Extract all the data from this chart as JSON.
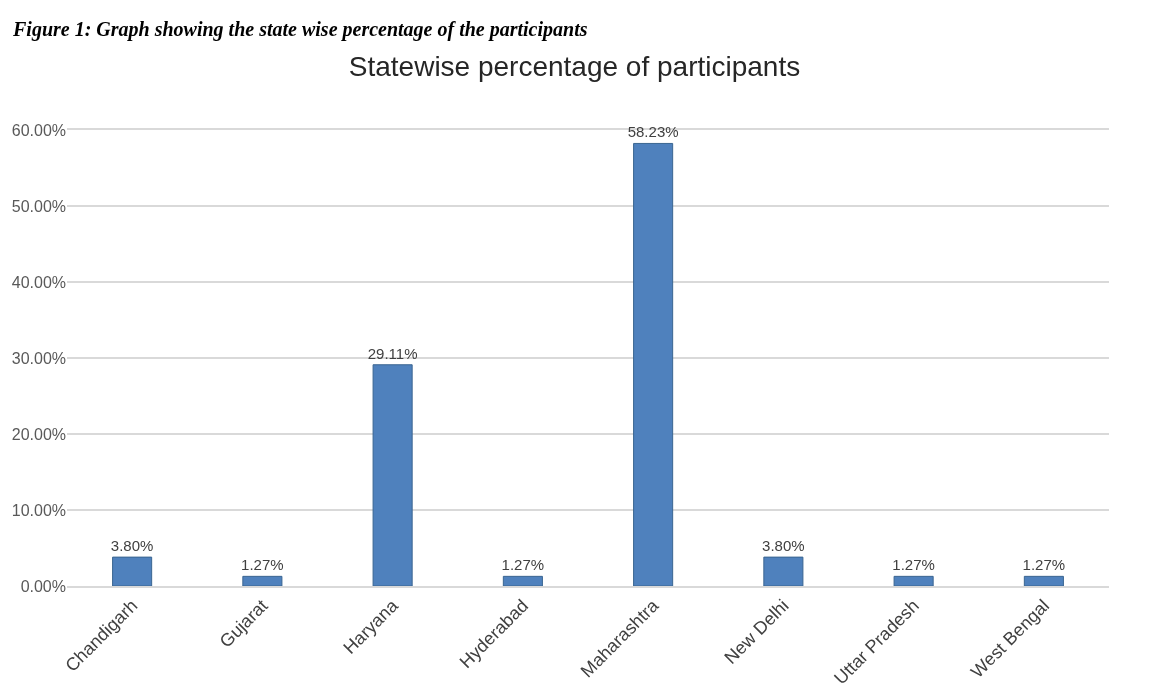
{
  "chart_data": {
    "type": "bar",
    "title": "Statewise percentage of participants",
    "annotations": [
      "Figure 1: Graph showing the state wise percentage of the participants"
    ],
    "categories": [
      "Chandigarh",
      "Gujarat",
      "Haryana",
      "Hyderabad",
      "Maharashtra",
      "New Delhi",
      "Uttar Pradesh",
      "West Bengal"
    ],
    "values": [
      3.8,
      1.27,
      29.11,
      1.27,
      58.23,
      3.8,
      1.27,
      1.27
    ],
    "value_labels": [
      "3.80%",
      "1.27%",
      "29.11%",
      "1.27%",
      "58.23%",
      "3.80%",
      "1.27%",
      "1.27%"
    ],
    "color": "#4f81bd",
    "ylim": [
      0,
      60
    ],
    "yticks": [
      {
        "value": 0,
        "label": "0.00%"
      },
      {
        "value": 10,
        "label": "10.00%"
      },
      {
        "value": 20,
        "label": "20.00%"
      },
      {
        "value": 30,
        "label": "30.00%"
      },
      {
        "value": 40,
        "label": "40.00%"
      },
      {
        "value": 50,
        "label": "50.00%"
      },
      {
        "value": 60,
        "label": "60.00%"
      }
    ],
    "grid": "y"
  }
}
